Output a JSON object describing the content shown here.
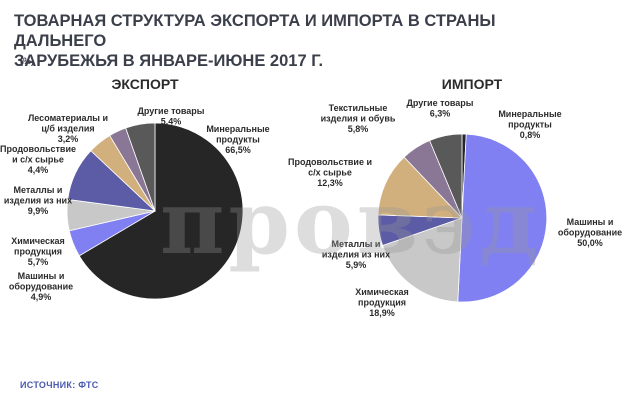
{
  "header": {
    "title_line1": "ТОВАРНАЯ СТРУКТУРА ЭКСПОРТА И ИМПОРТА В СТРАНЫ ДАЛЬНЕГО",
    "title_line2": "ЗАРУБЕЖЬЯ В ЯНВАРЕ-ИЮНЕ 2017 Г.",
    "unit": "(%)"
  },
  "footer": {
    "source": "ИСТОЧНИК: ФТС"
  },
  "chart_data": [
    {
      "type": "pie",
      "title": "ЭКСПОРТ",
      "start_angle_deg": 0,
      "slices": [
        {
          "label": [
            "Минеральные",
            "продукты"
          ],
          "value": 66.5,
          "value_text": "66,5%",
          "color": "#262626"
        },
        {
          "label": [
            "Машины и",
            "оборудование"
          ],
          "value": 4.9,
          "value_text": "4,9%",
          "color": "#8080f2"
        },
        {
          "label": [
            "Химическая",
            "продукция"
          ],
          "value": 5.7,
          "value_text": "5,7%",
          "color": "#c8c8c8"
        },
        {
          "label": [
            "Металлы и",
            "изделия из них"
          ],
          "value": 9.9,
          "value_text": "9,9%",
          "color": "#5c5ca6"
        },
        {
          "label": [
            "Продовольствие",
            "и с/х сырье"
          ],
          "value": 4.4,
          "value_text": "4,4%",
          "color": "#d2b07e"
        },
        {
          "label": [
            "Лесоматериалы и",
            "ц/б изделия"
          ],
          "value": 3.2,
          "value_text": "3,2%",
          "color": "#8a7796"
        },
        {
          "label": [
            "Другие товары"
          ],
          "value": 5.4,
          "value_text": "5,4%",
          "color": "#595959"
        }
      ]
    },
    {
      "type": "pie",
      "title": "ИМПОРТ",
      "start_angle_deg": 0,
      "slices": [
        {
          "label": [
            "Минеральные",
            "продукты"
          ],
          "value": 0.8,
          "value_text": "0,8%",
          "color": "#262626"
        },
        {
          "label": [
            "Машины и",
            "оборудование"
          ],
          "value": 50.0,
          "value_text": "50,0%",
          "color": "#8080f2"
        },
        {
          "label": [
            "Химическая",
            "продукция"
          ],
          "value": 18.9,
          "value_text": "18,9%",
          "color": "#c8c8c8"
        },
        {
          "label": [
            "Металлы и",
            "изделия из них"
          ],
          "value": 5.9,
          "value_text": "5,9%",
          "color": "#5c5ca6"
        },
        {
          "label": [
            "Продовольствие и",
            "с/х сырье"
          ],
          "value": 12.3,
          "value_text": "12,3%",
          "color": "#d2b07e"
        },
        {
          "label": [
            "Текстильные",
            "изделия и обувь"
          ],
          "value": 5.8,
          "value_text": "5,8%",
          "color": "#8a7796"
        },
        {
          "label": [
            "Другие товары"
          ],
          "value": 6.3,
          "value_text": "6,3%",
          "color": "#595959"
        }
      ]
    }
  ]
}
